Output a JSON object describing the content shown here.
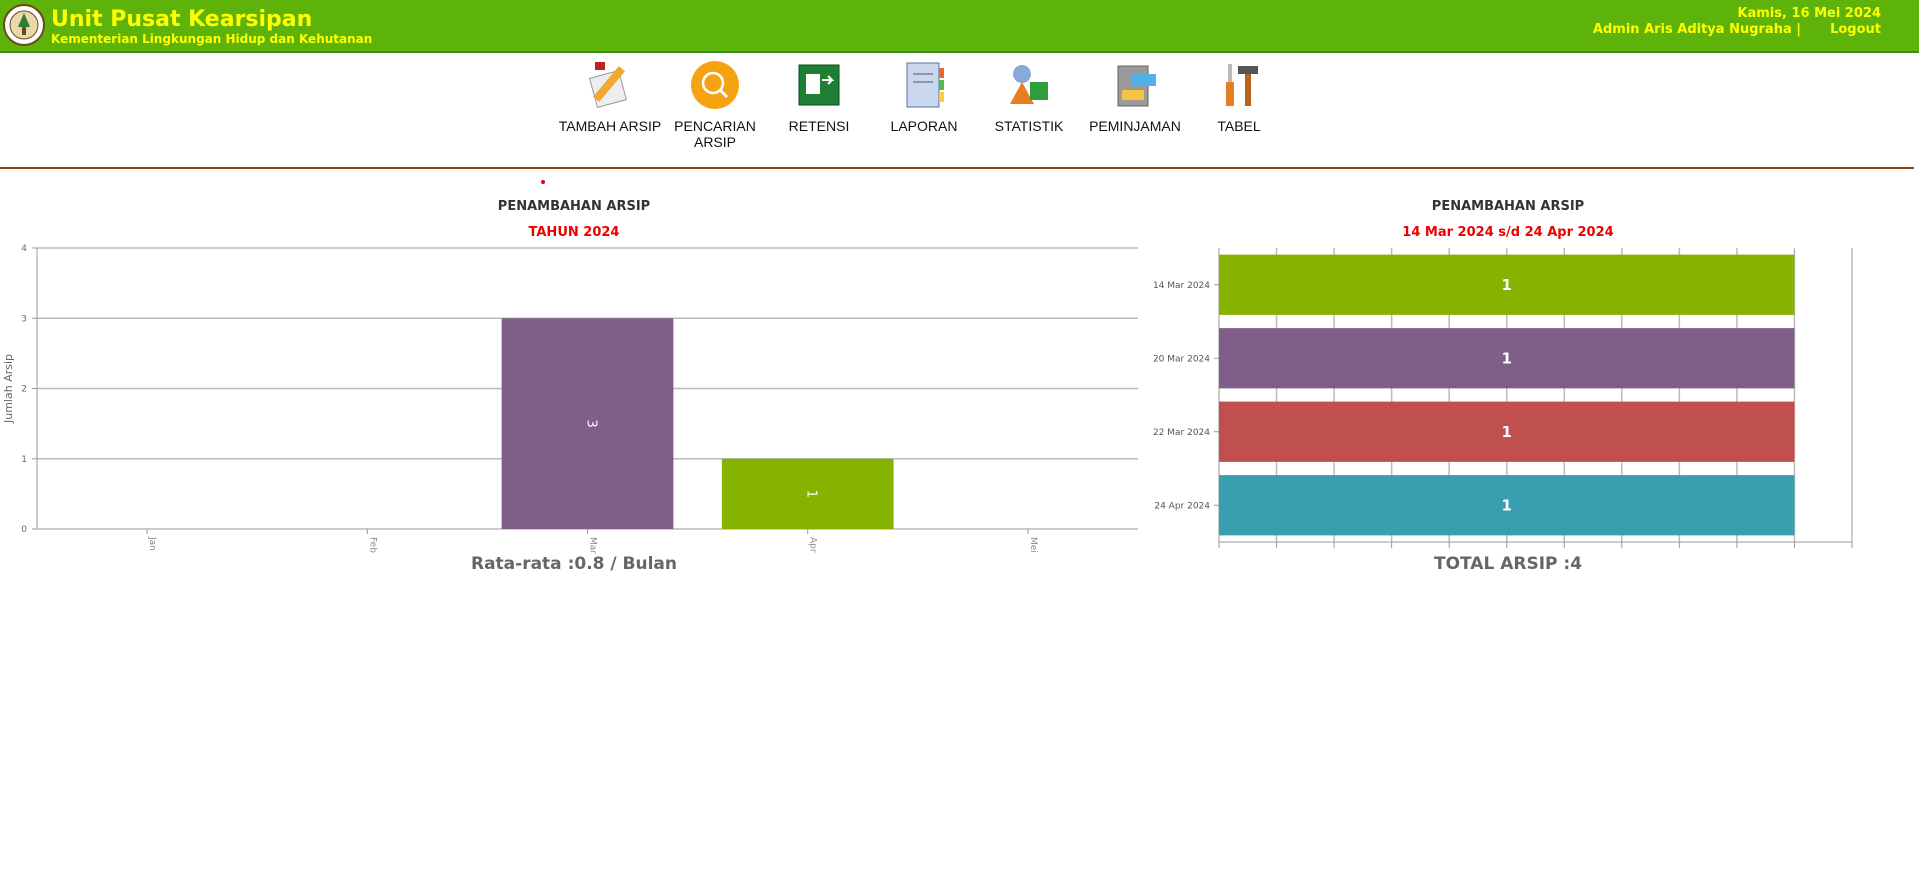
{
  "header": {
    "title": "Unit Pusat Kearsipan",
    "subtitle": "Kementerian Lingkungan Hidup dan Kehutanan",
    "date": "Kamis, 16 Mei 2024",
    "user": "Admin Aris Aditya Nugraha |",
    "logout": "Logout"
  },
  "menu": [
    "TAMBAH ARSIP",
    "PENCARIAN ARSIP",
    "RETENSI",
    "LAPORAN",
    "STATISTIK",
    "PEMINJAMAN",
    "TABEL"
  ],
  "chart_data": [
    {
      "type": "bar",
      "title": "PENAMBAHAN ARSIP",
      "subtitle": "TAHUN 2024",
      "ylabel": "Jumlah Arsip",
      "footer": "Rata-rata :0.8 / Bulan",
      "categories": [
        "Jan",
        "Feb",
        "Mar",
        "Apr",
        "Mei"
      ],
      "values": [
        0,
        0,
        3,
        1,
        0
      ],
      "colors": [
        "#7f5f87",
        "#7f5f87",
        "#7f5f87",
        "#86b300",
        "#c0504d"
      ],
      "ylim": [
        0,
        4
      ],
      "yticks": [
        0,
        1,
        2,
        3,
        4
      ],
      "grid": true
    },
    {
      "type": "hbar",
      "title": "PENAMBAHAN ARSIP",
      "subtitle": "14 Mar 2024 s/d 24 Apr 2024",
      "footer": "TOTAL ARSIP :4",
      "categories": [
        "14 Mar 2024",
        "20 Mar 2024",
        "22 Mar 2024",
        "24 Apr 2024"
      ],
      "values": [
        1,
        1,
        1,
        1
      ],
      "colors": [
        "#86b300",
        "#7f5f87",
        "#c0504d",
        "#389fb0"
      ],
      "xlim": [
        0,
        1.1
      ],
      "xticks": [
        0,
        0.1,
        0.2,
        0.3,
        0.4,
        0.5,
        0.6,
        0.7,
        0.8,
        0.9,
        1,
        1.1
      ],
      "grid": true
    }
  ]
}
